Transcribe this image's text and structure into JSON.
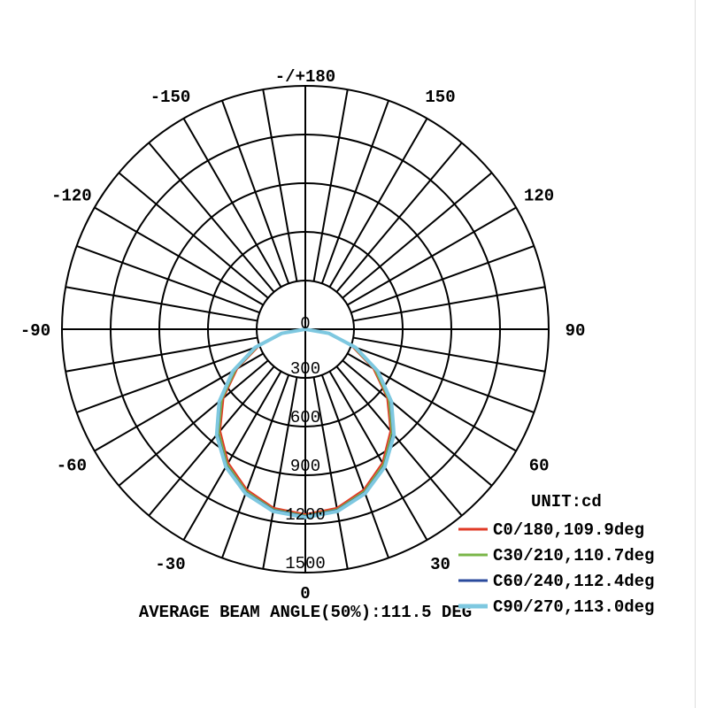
{
  "chart_data": {
    "type": "polar",
    "title": "AVERAGE BEAM ANGLE(50%):111.5 DEG",
    "unit_label": "UNIT:cd",
    "radial_ticks": [
      "0",
      "300",
      "600",
      "900",
      "1200",
      "1500"
    ],
    "radial_max": 1500,
    "angle_ticks": [
      "0",
      "30",
      "60",
      "90",
      "120",
      "150",
      "-/+180",
      "-150",
      "-120",
      "-90",
      "-60",
      "-30"
    ],
    "grid": true,
    "legend_placement": "bottom-right",
    "angles": [
      0,
      10,
      20,
      30,
      40,
      50,
      60,
      70,
      80,
      90
    ],
    "series": [
      {
        "name": "C0/180,109.9deg",
        "color": "#e03a26",
        "values": [
          1140,
          1118,
          1052,
          950,
          816,
          658,
          483,
          304,
          134,
          0
        ]
      },
      {
        "name": "C30/210,110.7deg",
        "color": "#7ab648",
        "values": [
          1148,
          1127,
          1063,
          962,
          829,
          671,
          494,
          312,
          138,
          0
        ]
      },
      {
        "name": "C60/240,112.4deg",
        "color": "#2a4a9c",
        "values": [
          1152,
          1132,
          1070,
          971,
          840,
          683,
          506,
          322,
          144,
          0
        ]
      },
      {
        "name": "C90/270,113.0deg",
        "color": "#7ec8e0",
        "values": [
          1160,
          1140,
          1078,
          980,
          850,
          693,
          515,
          330,
          148,
          0
        ]
      }
    ]
  }
}
